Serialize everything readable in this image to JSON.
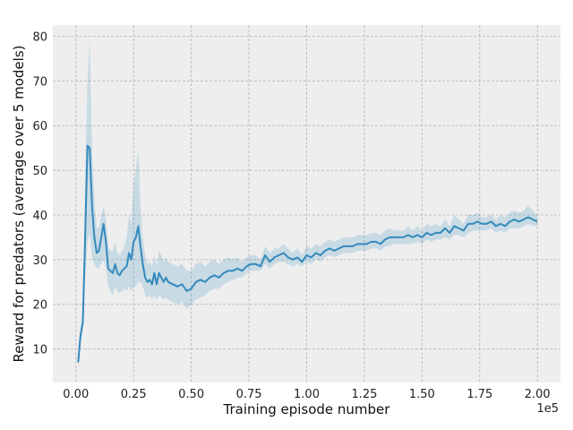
{
  "chart_data": {
    "type": "line",
    "xlabel": "Training episode number",
    "ylabel": "Reward for predators (averrage over 5 models)",
    "x_offset_label": "1e5",
    "xlim": [
      -0.1,
      2.1
    ],
    "ylim": [
      2.5,
      82.5
    ],
    "x_ticks": [
      0.0,
      0.25,
      0.5,
      0.75,
      1.0,
      1.25,
      1.5,
      1.75,
      2.0
    ],
    "x_tick_labels": [
      "0.00",
      "0.25",
      "0.50",
      "0.75",
      "1.00",
      "1.25",
      "1.50",
      "1.75",
      "2.00"
    ],
    "y_ticks": [
      10,
      20,
      30,
      40,
      50,
      60,
      70,
      80
    ],
    "y_tick_labels": [
      "10",
      "20",
      "30",
      "40",
      "50",
      "60",
      "70",
      "80"
    ],
    "grid": true,
    "colors": {
      "line": "#348abd",
      "band": "#348abd",
      "background": "#eeeeee",
      "grid": "#b2b2b2"
    },
    "series": [
      {
        "x": [
          0.01,
          0.02,
          0.03,
          0.04,
          0.05,
          0.06,
          0.07,
          0.08,
          0.09,
          0.1,
          0.11,
          0.12,
          0.13,
          0.14,
          0.15,
          0.16,
          0.17,
          0.18,
          0.19,
          0.2,
          0.21,
          0.22,
          0.23,
          0.24,
          0.25,
          0.26,
          0.27,
          0.28,
          0.29,
          0.3,
          0.31,
          0.32,
          0.33,
          0.34,
          0.35,
          0.36,
          0.37,
          0.38,
          0.39,
          0.4,
          0.42,
          0.44,
          0.46,
          0.48,
          0.5,
          0.52,
          0.54,
          0.56,
          0.58,
          0.6,
          0.62,
          0.64,
          0.66,
          0.68,
          0.7,
          0.72,
          0.74,
          0.76,
          0.78,
          0.8,
          0.82,
          0.84,
          0.86,
          0.88,
          0.9,
          0.92,
          0.94,
          0.96,
          0.98,
          1.0,
          1.02,
          1.04,
          1.06,
          1.08,
          1.1,
          1.12,
          1.14,
          1.16,
          1.18,
          1.2,
          1.22,
          1.24,
          1.26,
          1.28,
          1.3,
          1.32,
          1.34,
          1.36,
          1.38,
          1.4,
          1.42,
          1.44,
          1.46,
          1.48,
          1.5,
          1.52,
          1.54,
          1.56,
          1.58,
          1.6,
          1.62,
          1.64,
          1.66,
          1.68,
          1.7,
          1.72,
          1.74,
          1.76,
          1.78,
          1.8,
          1.82,
          1.84,
          1.86,
          1.88,
          1.9,
          1.92,
          1.94,
          1.96,
          1.98,
          2.0
        ],
        "values": [
          7,
          13,
          16,
          35,
          55.5,
          55,
          42,
          35,
          31.5,
          32,
          35,
          38,
          34,
          28,
          27.5,
          27,
          29,
          27,
          26.5,
          27.5,
          28,
          28.5,
          31.5,
          30,
          34,
          35,
          37.5,
          33,
          29,
          26,
          25,
          25.5,
          24.5,
          27,
          24.5,
          27,
          26,
          25,
          26,
          25,
          24.5,
          24,
          24.5,
          23,
          23.5,
          25,
          25.5,
          25,
          26,
          26.5,
          26,
          27,
          27.5,
          27.5,
          28,
          27.5,
          28.5,
          29,
          29,
          28.5,
          31,
          29.5,
          30.5,
          31,
          31.5,
          30.5,
          30,
          30.5,
          29.5,
          31,
          30.5,
          31.5,
          31,
          32,
          32.5,
          32,
          32.5,
          33,
          33,
          33,
          33.5,
          33.5,
          33.5,
          34,
          34,
          33.5,
          34.5,
          35,
          35,
          35,
          35,
          35.5,
          35,
          35.5,
          35,
          36,
          35.5,
          36,
          36,
          37,
          36,
          37.5,
          37,
          36.5,
          38,
          38,
          38.5,
          38,
          38,
          38.5,
          37.5,
          38,
          37.5,
          38.5,
          39,
          38.5,
          39,
          39.5,
          39,
          38.5
        ],
        "lower": [
          6,
          11,
          14,
          25,
          34,
          36,
          30,
          29,
          28,
          28,
          29,
          30,
          28,
          24,
          23,
          22,
          24,
          23,
          22.5,
          23,
          23.5,
          23,
          24,
          23,
          24,
          24,
          25,
          25,
          24,
          22,
          21.5,
          22,
          21,
          22,
          21,
          22,
          21.5,
          21,
          21.5,
          21,
          20.5,
          20,
          20.5,
          19,
          20,
          21,
          21.5,
          22,
          23,
          23.5,
          23.5,
          24.5,
          25,
          25.5,
          26,
          26,
          27,
          27.5,
          27.5,
          27.5,
          29,
          28,
          29,
          29.5,
          29.5,
          29,
          28.5,
          29,
          28.5,
          29.5,
          29,
          30,
          29.5,
          30.5,
          31,
          30.5,
          31,
          31.5,
          31.5,
          31.5,
          32,
          32,
          32,
          32.5,
          32.5,
          32,
          33,
          33,
          33.5,
          33.5,
          33.5,
          33.5,
          33.5,
          34,
          33.5,
          34.5,
          34,
          34.5,
          34.5,
          35,
          34.5,
          35.5,
          35.5,
          35,
          36,
          36.5,
          36.5,
          36.5,
          36.5,
          37,
          36,
          36.5,
          36,
          37,
          37,
          37,
          37.5,
          38,
          37.5,
          37.5
        ],
        "upper": [
          8,
          15,
          18,
          48,
          70,
          79,
          55,
          44,
          37,
          37,
          40,
          42,
          39,
          33,
          32,
          32,
          34,
          31.5,
          31,
          32,
          33,
          35,
          40,
          38,
          47,
          50,
          55,
          42,
          35,
          31,
          29,
          29.5,
          28.5,
          31,
          28.5,
          32,
          31,
          29.5,
          30.5,
          29.5,
          29,
          28.5,
          29,
          27.5,
          27.5,
          29,
          29.5,
          28.5,
          29.5,
          30,
          29,
          30,
          30.5,
          30,
          30.5,
          29.5,
          30.5,
          31,
          31,
          30,
          33,
          31.5,
          32.5,
          32.5,
          33.5,
          32.5,
          31.5,
          32.5,
          31,
          33,
          32.5,
          33.5,
          33,
          34,
          34.5,
          34,
          34.5,
          35,
          35,
          35,
          35.5,
          35.5,
          35.5,
          36,
          36,
          35.5,
          36.5,
          37,
          36.5,
          36.5,
          36.5,
          37.5,
          36.5,
          37.5,
          36.5,
          38,
          37.5,
          38,
          37.5,
          39,
          37.5,
          40,
          39,
          38,
          40,
          40,
          40.5,
          39.5,
          39.5,
          40,
          39,
          40,
          39.5,
          40.5,
          41,
          40.5,
          41,
          42,
          41,
          40
        ]
      }
    ]
  }
}
